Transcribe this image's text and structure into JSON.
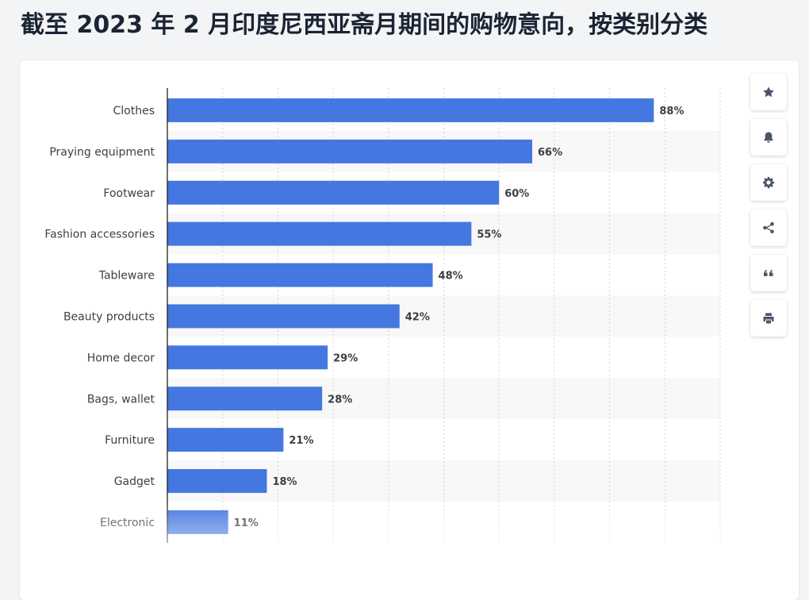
{
  "page": {
    "title": "截至 2023 年 2 月印度尼西亚斋月期间的购物意向，按类别分类"
  },
  "toolbar": {
    "buttons": [
      {
        "icon": "star-icon",
        "name": "favorite-button"
      },
      {
        "icon": "bell-icon",
        "name": "notification-button"
      },
      {
        "icon": "gear-icon",
        "name": "settings-button"
      },
      {
        "icon": "share-icon",
        "name": "share-button"
      },
      {
        "icon": "quote-icon",
        "name": "cite-button"
      },
      {
        "icon": "print-icon",
        "name": "print-button"
      }
    ]
  },
  "chart_data": {
    "type": "bar",
    "orientation": "horizontal",
    "title": "截至 2023 年 2 月印度尼西亚斋月期间的购物意向，按类别分类",
    "categories": [
      "Clothes",
      "Praying equipment",
      "Footwear",
      "Fashion accessories",
      "Tableware",
      "Beauty products",
      "Home decor",
      "Bags, wallet",
      "Furniture",
      "Gadget",
      "Electronic"
    ],
    "values": [
      88,
      66,
      60,
      55,
      48,
      42,
      29,
      28,
      21,
      18,
      11
    ],
    "value_labels": [
      "88%",
      "66%",
      "60%",
      "55%",
      "48%",
      "42%",
      "29%",
      "28%",
      "21%",
      "18%",
      "11%"
    ],
    "xlim": [
      0,
      100
    ],
    "grid": true,
    "bar_color": "#4477e0"
  }
}
